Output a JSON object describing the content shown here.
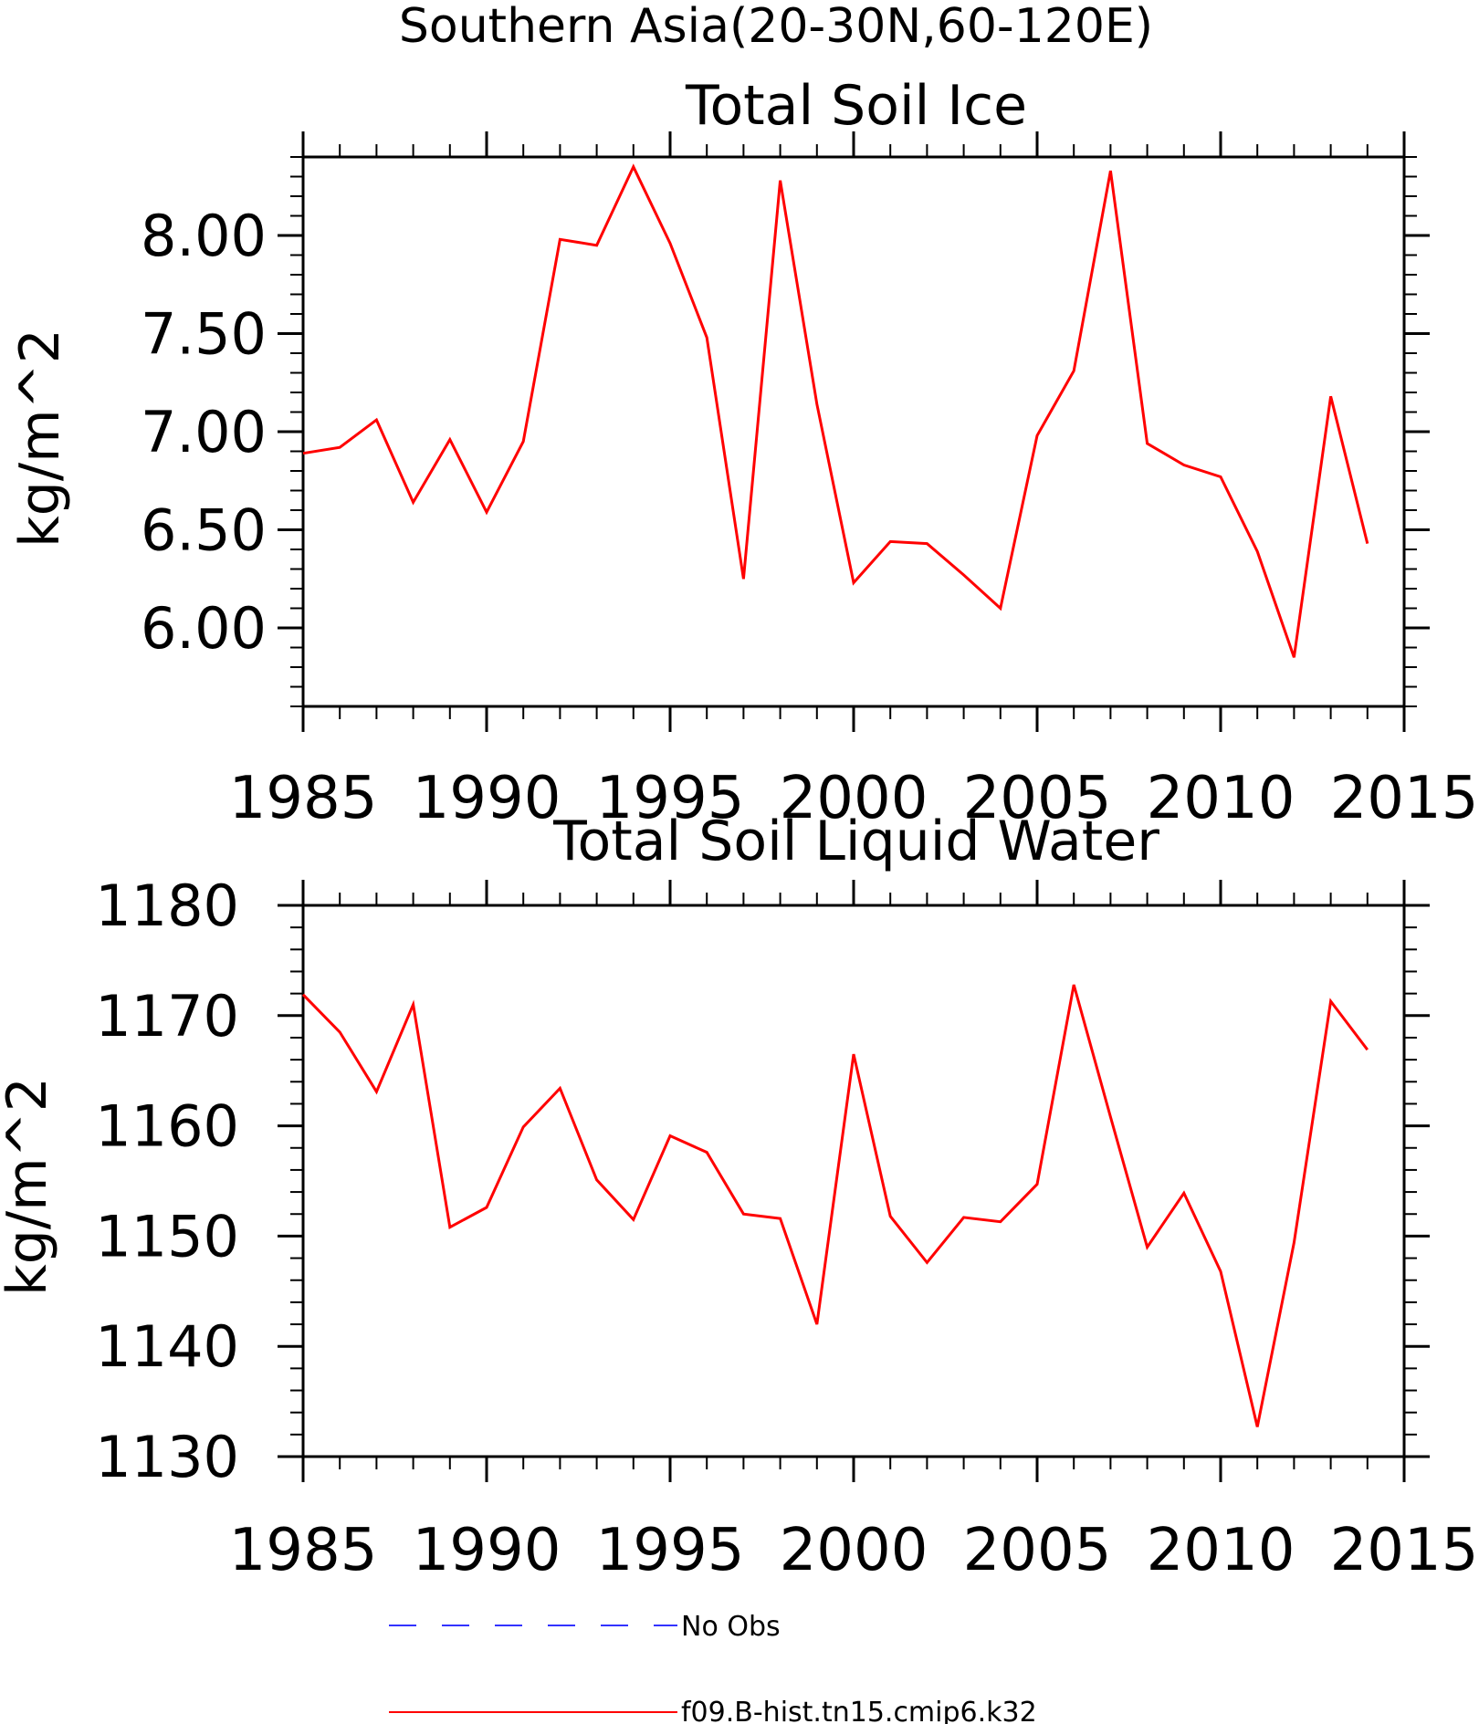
{
  "figure": {
    "suptitle": "Southern Asia(20-30N,60-120E)",
    "legend": [
      {
        "label": "No Obs",
        "color": "#3333ff",
        "dashed": true
      },
      {
        "label": "f09.B-hist.tn15.cmip6.k32",
        "color": "#ff0000",
        "dashed": false
      }
    ]
  },
  "chart_data": [
    {
      "type": "line",
      "title": "Total Soil Ice",
      "xlabel": "",
      "ylabel": "kg/m^2",
      "xlim": [
        1985,
        2015
      ],
      "ylim": [
        5.6,
        8.4
      ],
      "xticks": [
        1985,
        1990,
        1995,
        2000,
        2005,
        2010,
        2015
      ],
      "xtick_labels": [
        "1985",
        "1990",
        "1995",
        "2000",
        "2005",
        "2010",
        "2015"
      ],
      "yticks": [
        6.0,
        6.5,
        7.0,
        7.5,
        8.0
      ],
      "ytick_labels": [
        "6.00",
        "6.50",
        "7.00",
        "7.50",
        "8.00"
      ],
      "grid": false,
      "series": [
        {
          "name": "f09.B-hist.tn15.cmip6.k32",
          "color": "#ff0000",
          "x": [
            1985,
            1986,
            1987,
            1988,
            1989,
            1990,
            1991,
            1992,
            1993,
            1994,
            1995,
            1996,
            1997,
            1998,
            1999,
            2000,
            2001,
            2002,
            2003,
            2004,
            2005,
            2006,
            2007,
            2008,
            2009,
            2010,
            2011,
            2012,
            2013,
            2014
          ],
          "values": [
            6.89,
            6.92,
            7.06,
            6.64,
            6.96,
            6.59,
            6.95,
            7.98,
            7.95,
            8.35,
            7.96,
            7.48,
            6.25,
            8.28,
            7.14,
            6.23,
            6.44,
            6.43,
            6.27,
            6.1,
            6.98,
            7.31,
            8.33,
            6.94,
            6.83,
            6.77,
            6.39,
            5.85,
            7.18,
            6.43
          ]
        }
      ]
    },
    {
      "type": "line",
      "title": "Total Soil Liquid Water",
      "xlabel": "",
      "ylabel": "kg/m^2",
      "xlim": [
        1985,
        2015
      ],
      "ylim": [
        1130,
        1180
      ],
      "xticks": [
        1985,
        1990,
        1995,
        2000,
        2005,
        2010,
        2015
      ],
      "xtick_labels": [
        "1985",
        "1990",
        "1995",
        "2000",
        "2005",
        "2010",
        "2015"
      ],
      "yticks": [
        1130,
        1140,
        1150,
        1160,
        1170,
        1180
      ],
      "ytick_labels": [
        "1130",
        "1140",
        "1150",
        "1160",
        "1170",
        "1180"
      ],
      "grid": false,
      "series": [
        {
          "name": "f09.B-hist.tn15.cmip6.k32",
          "color": "#ff0000",
          "x": [
            1985,
            1986,
            1987,
            1988,
            1989,
            1990,
            1991,
            1992,
            1993,
            1994,
            1995,
            1996,
            1997,
            1998,
            1999,
            2000,
            2001,
            2002,
            2003,
            2004,
            2005,
            2006,
            2007,
            2008,
            2009,
            2010,
            2011,
            2012,
            2013,
            2014
          ],
          "values": [
            1171.9,
            1168.5,
            1163.1,
            1171.0,
            1150.8,
            1152.6,
            1159.9,
            1163.4,
            1155.1,
            1151.5,
            1159.1,
            1157.6,
            1152.0,
            1151.6,
            1142.0,
            1166.5,
            1151.8,
            1147.6,
            1151.7,
            1151.3,
            1154.7,
            1172.8,
            1160.8,
            1149.0,
            1153.9,
            1146.8,
            1132.7,
            1149.4,
            1171.3,
            1166.9
          ]
        }
      ]
    }
  ]
}
